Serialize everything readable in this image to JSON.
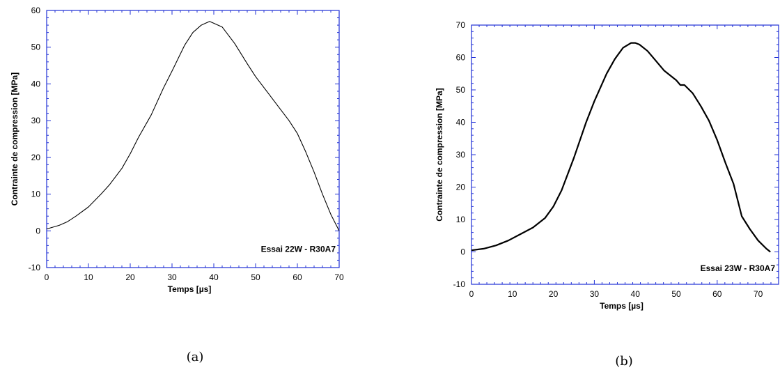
{
  "chart_data": [
    {
      "type": "line",
      "caption": "(a)",
      "xlabel": "Temps [µs]",
      "ylabel": "Contrainte de compression [MPa]",
      "xlim": [
        0,
        70
      ],
      "ylim": [
        -10,
        60
      ],
      "xticks": [
        0,
        10,
        20,
        30,
        40,
        50,
        60,
        70
      ],
      "yticks": [
        -10,
        0,
        10,
        20,
        30,
        40,
        50,
        60
      ],
      "annotation": "Essai 22W - R30A7",
      "grid": false,
      "stroke": "#000000",
      "x": [
        0,
        3,
        5,
        7,
        10,
        13,
        15,
        18,
        20,
        22,
        25,
        28,
        30,
        33,
        35,
        37,
        38,
        39,
        40,
        42,
        45,
        48,
        50,
        53,
        55,
        58,
        60,
        62,
        64,
        66,
        68,
        70
      ],
      "y": [
        0.5,
        1.5,
        2.5,
        4,
        6.5,
        10,
        12.5,
        17,
        21,
        25.5,
        31.5,
        39,
        43.5,
        50.5,
        54,
        56,
        56.5,
        57,
        56.5,
        55.5,
        51,
        45.5,
        42,
        37.5,
        34.5,
        30,
        26.5,
        21.5,
        16,
        10,
        4.5,
        0
      ]
    },
    {
      "type": "line",
      "caption": "(b)",
      "xlabel": "Temps [µs]",
      "ylabel": "Contrainte de compression [MPa]",
      "xlim": [
        0,
        75
      ],
      "ylim": [
        -10,
        70
      ],
      "xticks": [
        0,
        10,
        20,
        30,
        40,
        50,
        60,
        70
      ],
      "yticks": [
        -10,
        0,
        10,
        20,
        30,
        40,
        50,
        60,
        70
      ],
      "annotation": "Essai 23W - R30A7",
      "grid": false,
      "stroke": "#000000",
      "x": [
        0,
        3,
        6,
        9,
        12,
        15,
        18,
        20,
        22,
        25,
        28,
        30,
        33,
        35,
        37,
        39,
        40,
        41,
        43,
        45,
        47,
        50,
        51,
        52,
        54,
        56,
        58,
        60,
        62,
        64,
        66,
        68,
        70,
        72,
        73
      ],
      "y": [
        0.5,
        1,
        2,
        3.5,
        5.5,
        7.5,
        10.5,
        14,
        19,
        29,
        40,
        46.5,
        55,
        59.5,
        63,
        64.5,
        64.5,
        64,
        62,
        59,
        56,
        53,
        51.5,
        51.5,
        49,
        45,
        40.5,
        34.5,
        27.5,
        21,
        11,
        7,
        3.5,
        1,
        0
      ]
    }
  ]
}
